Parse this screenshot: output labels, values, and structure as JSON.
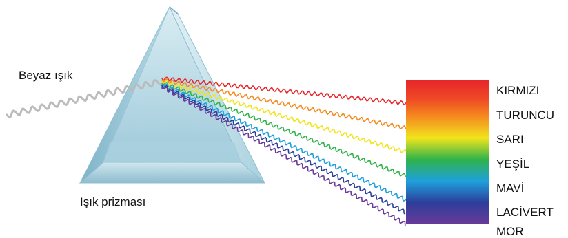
{
  "labels": {
    "white_light": "Beyaz ışık",
    "prism": "Işık prizması"
  },
  "spectrum": [
    {
      "label": "KIRMIZI",
      "color": "#e8262b"
    },
    {
      "label": "TURUNCU",
      "color": "#f58a1f"
    },
    {
      "label": "SARI",
      "color": "#f1e41c"
    },
    {
      "label": "YEŞİL",
      "color": "#2fb34a"
    },
    {
      "label": "MAVİ",
      "color": "#1fa0dc"
    },
    {
      "label": "LACİVERT",
      "color": "#2c3e9a"
    },
    {
      "label": "MOR",
      "color": "#6a3a9a"
    }
  ],
  "colors": {
    "white_light_wave": "#bbbbbb",
    "prism_face": "#b9dae6",
    "prism_edge": "#8fc0d2"
  }
}
